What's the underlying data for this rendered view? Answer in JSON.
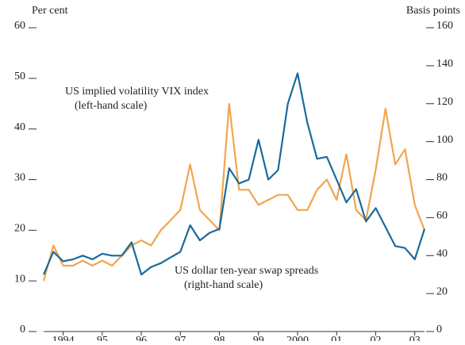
{
  "chart_data": {
    "type": "line",
    "y_label": "Per cent",
    "y2_label": "Basis points",
    "annotations": [
      "US implied volatility VIX index",
      "(left-hand scale)",
      "US dollar ten-year swap spreads",
      "(right-hand scale)"
    ],
    "x": [
      1994.0,
      1994.25,
      1994.5,
      1994.75,
      1995.0,
      1995.25,
      1995.5,
      1995.75,
      1996.0,
      1996.25,
      1996.5,
      1996.75,
      1997.0,
      1997.25,
      1997.5,
      1997.75,
      1998.0,
      1998.25,
      1998.5,
      1998.75,
      1999.0,
      1999.25,
      1999.5,
      1999.75,
      2000.0,
      2000.25,
      2000.5,
      2000.75,
      2001.0,
      2001.25,
      2001.5,
      2001.75,
      2002.0,
      2002.25,
      2002.5,
      2002.75,
      2003.0,
      2003.25,
      2003.5,
      2003.75
    ],
    "series": [
      {
        "name": "US implied volatility VIX index",
        "color": "#f2a54c",
        "axis": "y",
        "values": [
          10,
          17,
          13,
          13,
          14,
          13,
          14,
          13,
          15,
          17,
          18,
          17,
          20,
          22,
          24,
          33,
          24,
          22,
          20,
          45,
          28,
          28,
          25,
          26,
          27,
          27,
          24,
          24,
          28,
          30,
          26,
          35,
          24,
          22,
          32,
          44,
          33,
          36,
          25,
          20
        ]
      },
      {
        "name": "US dollar ten-year swap spreads",
        "color": "#1a6a9c",
        "axis": "y2",
        "values": [
          30,
          42,
          37,
          38,
          40,
          38,
          41,
          40,
          40,
          47,
          30,
          34,
          36,
          39,
          42,
          56,
          48,
          52,
          54,
          86,
          78,
          80,
          101,
          80,
          85,
          120,
          136,
          110,
          91,
          92,
          80,
          68,
          75,
          58,
          65,
          55,
          45,
          44,
          38,
          54
        ]
      }
    ],
    "xlim": [
      1994,
      2003.75
    ],
    "xticks": [
      {
        "value": 1994.5,
        "label": "1994"
      },
      {
        "value": 1995.5,
        "label": "95"
      },
      {
        "value": 1996.5,
        "label": "96"
      },
      {
        "value": 1997.5,
        "label": "97"
      },
      {
        "value": 1998.5,
        "label": "98"
      },
      {
        "value": 1999.5,
        "label": "99"
      },
      {
        "value": 2000.5,
        "label": "2000"
      },
      {
        "value": 2001.5,
        "label": "01"
      },
      {
        "value": 2002.5,
        "label": "02"
      },
      {
        "value": 2003.5,
        "label": "03"
      }
    ],
    "ylim": [
      0,
      60
    ],
    "yticks": [
      0,
      10,
      20,
      30,
      40,
      50,
      60
    ],
    "y2lim": [
      0,
      160
    ],
    "y2ticks": [
      0,
      20,
      40,
      60,
      80,
      100,
      120,
      140,
      160
    ]
  }
}
